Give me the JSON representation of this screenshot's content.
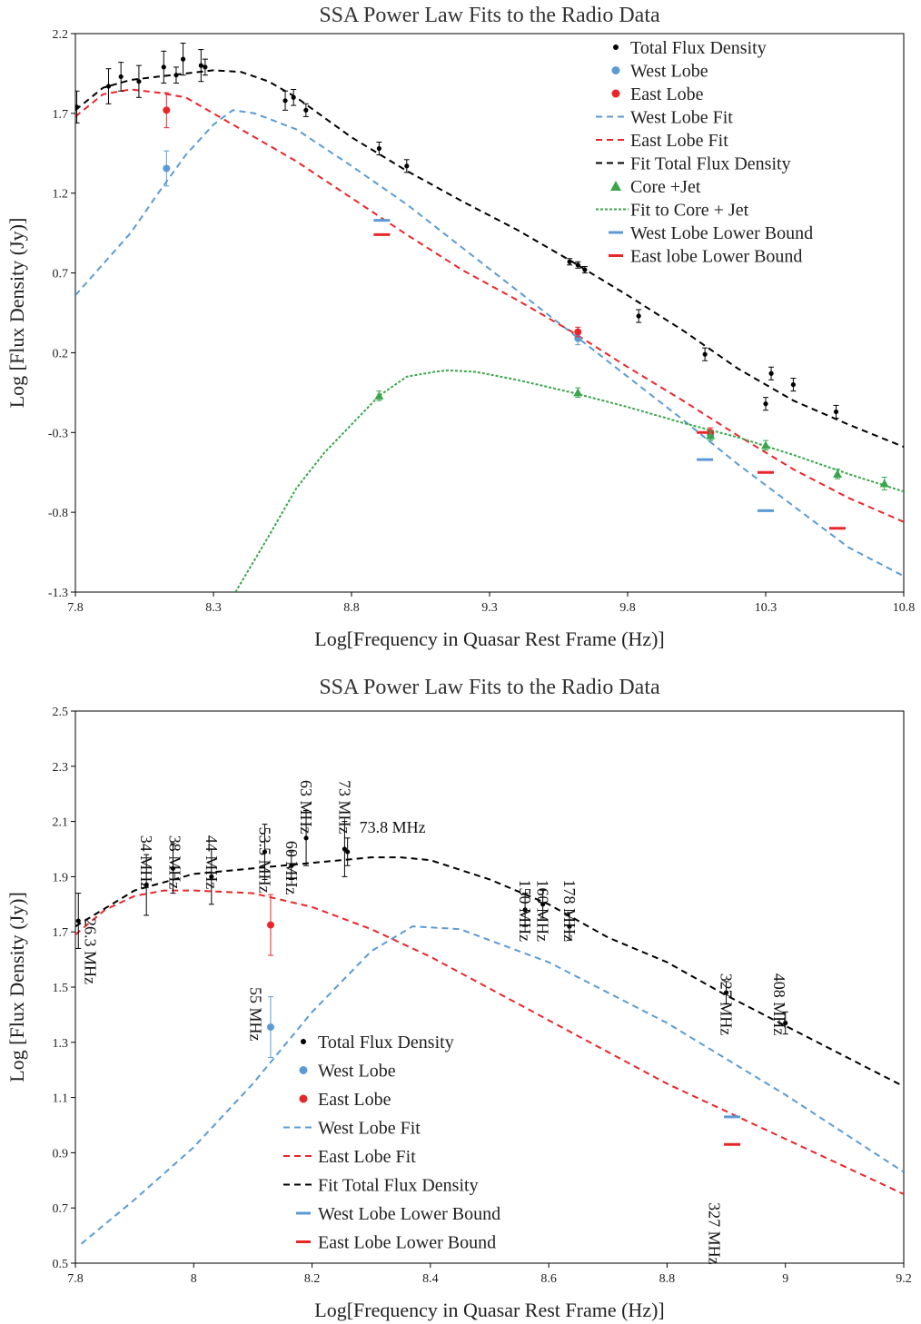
{
  "chart_data": [
    {
      "type": "scatter",
      "title": "SSA Power Law Fits to the Radio Data",
      "xlabel": "Log[Frequency in Quasar Rest Frame (Hz)]",
      "ylabel": "Log [Flux Density (Jy)]",
      "xlim": [
        7.8,
        10.8
      ],
      "ylim": [
        -1.3,
        2.2
      ],
      "xticks": [
        7.8,
        8.3,
        8.8,
        9.3,
        9.8,
        10.3,
        10.8
      ],
      "xtick_labels": [
        "7.8",
        "8.3",
        "8.8",
        "9.3",
        "9.8",
        "10.3",
        "10.8"
      ],
      "yticks": [
        -1.3,
        -0.8,
        -0.3,
        0.2,
        0.7,
        1.2,
        1.7,
        2.2
      ],
      "ytick_labels": [
        "-1.3",
        "-0.8",
        "-0.3",
        "0.2",
        "0.7",
        "1.2",
        "1.7",
        "2.2"
      ],
      "legend_position": "top-right",
      "series": [
        {
          "name": "Total Flux Density",
          "kind": "points",
          "marker": "circle",
          "color": "#000000",
          "points": [
            [
              7.805,
              1.74,
              0.1
            ],
            [
              7.92,
              1.87,
              0.11
            ],
            [
              7.965,
              1.93,
              0.09
            ],
            [
              8.03,
              1.9,
              0.1
            ],
            [
              8.12,
              1.99,
              0.1
            ],
            [
              8.165,
              1.94,
              0.05
            ],
            [
              8.19,
              2.04,
              0.1
            ],
            [
              8.255,
              2.0,
              0.1
            ],
            [
              8.27,
              1.99,
              0.05
            ],
            [
              8.56,
              1.78,
              0.06
            ],
            [
              8.59,
              1.8,
              0.05
            ],
            [
              8.635,
              1.72,
              0.04
            ],
            [
              8.9,
              1.48,
              0.04
            ],
            [
              9.0,
              1.37,
              0.04
            ],
            [
              9.59,
              0.77,
              0.02
            ],
            [
              9.62,
              0.75,
              0.02
            ],
            [
              9.645,
              0.72,
              0.02
            ],
            [
              9.84,
              0.43,
              0.04
            ],
            [
              10.08,
              0.19,
              0.04
            ],
            [
              10.3,
              -0.12,
              0.04
            ],
            [
              10.32,
              0.07,
              0.04
            ],
            [
              10.4,
              0.0,
              0.04
            ],
            [
              10.555,
              -0.17,
              0.04
            ]
          ]
        },
        {
          "name": "West Lobe",
          "kind": "points",
          "marker": "circle",
          "color": "#5b9bd5",
          "points": [
            [
              8.13,
              1.355,
              0.11
            ],
            [
              9.62,
              0.29,
              0.04
            ],
            [
              10.1,
              -0.32,
              0.03
            ]
          ]
        },
        {
          "name": "East Lobe",
          "kind": "points",
          "marker": "circle",
          "color": "#e8262a",
          "points": [
            [
              8.13,
              1.72,
              0.11
            ],
            [
              9.62,
              0.33,
              0.03
            ],
            [
              10.1,
              -0.3,
              0.03
            ]
          ]
        },
        {
          "name": "West Lobe Fit",
          "kind": "line",
          "dash": "dashed",
          "color": "#5b9bd5",
          "points": [
            [
              7.8,
              0.56
            ],
            [
              8.0,
              0.95
            ],
            [
              8.1,
              1.2
            ],
            [
              8.2,
              1.44
            ],
            [
              8.3,
              1.63
            ],
            [
              8.37,
              1.72
            ],
            [
              8.45,
              1.7
            ],
            [
              8.6,
              1.6
            ],
            [
              8.8,
              1.37
            ],
            [
              9.0,
              1.13
            ],
            [
              9.2,
              0.86
            ],
            [
              9.4,
              0.59
            ],
            [
              9.6,
              0.32
            ],
            [
              9.8,
              0.05
            ],
            [
              10.0,
              -0.22
            ],
            [
              10.2,
              -0.5
            ],
            [
              10.4,
              -0.76
            ],
            [
              10.6,
              -1.02
            ],
            [
              10.8,
              -1.2
            ]
          ]
        },
        {
          "name": "East Lobe Fit",
          "kind": "line",
          "dash": "dashed",
          "color": "#e8262a",
          "points": [
            [
              7.8,
              1.68
            ],
            [
              7.9,
              1.82
            ],
            [
              8.0,
              1.85
            ],
            [
              8.1,
              1.83
            ],
            [
              8.2,
              1.8
            ],
            [
              8.3,
              1.7
            ],
            [
              8.4,
              1.6
            ],
            [
              8.6,
              1.4
            ],
            [
              8.8,
              1.17
            ],
            [
              9.0,
              0.94
            ],
            [
              9.2,
              0.72
            ],
            [
              9.4,
              0.53
            ],
            [
              9.6,
              0.33
            ],
            [
              9.8,
              0.11
            ],
            [
              10.0,
              -0.1
            ],
            [
              10.2,
              -0.32
            ],
            [
              10.4,
              -0.53
            ],
            [
              10.6,
              -0.71
            ],
            [
              10.8,
              -0.86
            ]
          ]
        },
        {
          "name": "Fit Total Flux Density",
          "kind": "line",
          "dash": "dashed",
          "color": "#000000",
          "points": [
            [
              7.8,
              1.72
            ],
            [
              7.9,
              1.86
            ],
            [
              8.0,
              1.91
            ],
            [
              8.1,
              1.93
            ],
            [
              8.2,
              1.95
            ],
            [
              8.3,
              1.97
            ],
            [
              8.4,
              1.96
            ],
            [
              8.5,
              1.9
            ],
            [
              8.6,
              1.8
            ],
            [
              8.8,
              1.55
            ],
            [
              9.0,
              1.34
            ],
            [
              9.2,
              1.15
            ],
            [
              9.4,
              0.97
            ],
            [
              9.6,
              0.77
            ],
            [
              9.8,
              0.56
            ],
            [
              10.0,
              0.34
            ],
            [
              10.2,
              0.1
            ],
            [
              10.4,
              -0.1
            ],
            [
              10.6,
              -0.25
            ],
            [
              10.8,
              -0.39
            ]
          ]
        },
        {
          "name": "Core +Jet",
          "kind": "points",
          "marker": "triangle",
          "color": "#3aa64c",
          "points": [
            [
              8.9,
              -0.07,
              0.03
            ],
            [
              9.62,
              -0.05,
              0.03
            ],
            [
              10.1,
              -0.32,
              0.03
            ],
            [
              10.3,
              -0.38,
              0.03
            ],
            [
              10.56,
              -0.56,
              0.03
            ],
            [
              10.73,
              -0.62,
              0.04
            ]
          ]
        },
        {
          "name": "Fit to Core + Jet",
          "kind": "line",
          "dash": "dotted",
          "color": "#3aa64c",
          "points": [
            [
              8.38,
              -1.3
            ],
            [
              8.5,
              -0.95
            ],
            [
              8.6,
              -0.65
            ],
            [
              8.7,
              -0.43
            ],
            [
              8.8,
              -0.25
            ],
            [
              8.9,
              -0.07
            ],
            [
              9.0,
              0.05
            ],
            [
              9.1,
              0.08
            ],
            [
              9.15,
              0.09
            ],
            [
              9.25,
              0.08
            ],
            [
              9.4,
              0.03
            ],
            [
              9.6,
              -0.05
            ],
            [
              9.8,
              -0.14
            ],
            [
              10.0,
              -0.24
            ],
            [
              10.2,
              -0.33
            ],
            [
              10.4,
              -0.44
            ],
            [
              10.6,
              -0.56
            ],
            [
              10.8,
              -0.67
            ]
          ]
        },
        {
          "name": "West Lobe Lower Bound",
          "kind": "bound",
          "color": "#5b9bd5",
          "points": [
            [
              8.91,
              1.03
            ],
            [
              10.08,
              -0.47
            ],
            [
              10.3,
              -0.79
            ]
          ]
        },
        {
          "name": "East lobe Lower Bound",
          "kind": "bound",
          "color": "#e8262a",
          "points": [
            [
              8.91,
              0.94
            ],
            [
              10.08,
              -0.3
            ],
            [
              10.3,
              -0.55
            ],
            [
              10.56,
              -0.9
            ]
          ]
        }
      ]
    },
    {
      "type": "scatter",
      "title": "SSA Power Law Fits to the Radio Data",
      "xlabel": "Log[Frequency in Quasar Rest Frame (Hz)]",
      "ylabel": "Log [Flux Density (Jy)]",
      "xlim": [
        7.8,
        9.2
      ],
      "ylim": [
        0.5,
        2.5
      ],
      "xticks": [
        7.8,
        8.0,
        8.2,
        8.4,
        8.6,
        8.8,
        9.0,
        9.2
      ],
      "xtick_labels": [
        "7.8",
        "8",
        "8.2",
        "8.4",
        "8.6",
        "8.8",
        "9",
        "9.2"
      ],
      "yticks": [
        0.5,
        0.7,
        0.9,
        1.1,
        1.3,
        1.5,
        1.7,
        1.9,
        2.1,
        2.3,
        2.5
      ],
      "ytick_labels": [
        "0.5",
        "0.7",
        "0.9",
        "1.1",
        "1.3",
        "1.5",
        "1.7",
        "1.9",
        "2.1",
        "2.3",
        "2.5"
      ],
      "legend_position": "bottom-center",
      "series": [
        {
          "name": "Total Flux Density",
          "kind": "points",
          "marker": "circle",
          "color": "#000000",
          "points": [
            [
              7.805,
              1.74,
              0.1
            ],
            [
              7.92,
              1.87,
              0.11
            ],
            [
              7.965,
              1.93,
              0.09
            ],
            [
              8.03,
              1.9,
              0.1
            ],
            [
              8.12,
              1.99,
              0.1
            ],
            [
              8.165,
              1.94,
              0.05
            ],
            [
              8.19,
              2.04,
              0.1
            ],
            [
              8.255,
              2.0,
              0.1
            ],
            [
              8.26,
              1.99,
              0.05
            ],
            [
              8.56,
              1.78,
              0.06
            ],
            [
              8.59,
              1.8,
              0.05
            ],
            [
              8.635,
              1.72,
              0.05
            ],
            [
              8.9,
              1.48,
              0.04
            ],
            [
              9.0,
              1.37,
              0.04
            ]
          ]
        },
        {
          "name": "West Lobe",
          "kind": "points",
          "marker": "circle",
          "color": "#5b9bd5",
          "points": [
            [
              8.13,
              1.355,
              0.11
            ]
          ]
        },
        {
          "name": "East Lobe",
          "kind": "points",
          "marker": "circle",
          "color": "#e8262a",
          "points": [
            [
              8.13,
              1.725,
              0.11
            ]
          ]
        },
        {
          "name": "West Lobe Fit",
          "kind": "line",
          "dash": "dashed",
          "color": "#5b9bd5",
          "points": [
            [
              7.81,
              0.57
            ],
            [
              7.9,
              0.73
            ],
            [
              8.0,
              0.92
            ],
            [
              8.1,
              1.15
            ],
            [
              8.2,
              1.41
            ],
            [
              8.3,
              1.63
            ],
            [
              8.37,
              1.72
            ],
            [
              8.45,
              1.71
            ],
            [
              8.6,
              1.59
            ],
            [
              8.8,
              1.37
            ],
            [
              9.0,
              1.11
            ],
            [
              9.2,
              0.83
            ]
          ]
        },
        {
          "name": "East Lobe Fit",
          "kind": "line",
          "dash": "dashed",
          "color": "#e8262a",
          "points": [
            [
              7.8,
              1.69
            ],
            [
              7.85,
              1.78
            ],
            [
              7.9,
              1.83
            ],
            [
              7.95,
              1.85
            ],
            [
              8.0,
              1.85
            ],
            [
              8.1,
              1.84
            ],
            [
              8.2,
              1.79
            ],
            [
              8.3,
              1.71
            ],
            [
              8.4,
              1.61
            ],
            [
              8.6,
              1.38
            ],
            [
              8.8,
              1.15
            ],
            [
              9.0,
              0.95
            ],
            [
              9.2,
              0.75
            ]
          ]
        },
        {
          "name": "Fit Total Flux Density",
          "kind": "line",
          "dash": "dashed",
          "color": "#000000",
          "points": [
            [
              7.8,
              1.72
            ],
            [
              7.9,
              1.85
            ],
            [
              8.0,
              1.91
            ],
            [
              8.1,
              1.93
            ],
            [
              8.2,
              1.95
            ],
            [
              8.3,
              1.97
            ],
            [
              8.35,
              1.97
            ],
            [
              8.4,
              1.96
            ],
            [
              8.5,
              1.89
            ],
            [
              8.6,
              1.8
            ],
            [
              8.7,
              1.68
            ],
            [
              8.8,
              1.59
            ],
            [
              8.9,
              1.47
            ],
            [
              9.0,
              1.36
            ],
            [
              9.1,
              1.25
            ],
            [
              9.2,
              1.14
            ]
          ]
        },
        {
          "name": "West Lobe Lower Bound",
          "kind": "bound",
          "color": "#5b9bd5",
          "points": [
            [
              8.91,
              1.03
            ]
          ]
        },
        {
          "name": "East Lobe Lower Bound",
          "kind": "bound",
          "color": "#e8262a",
          "points": [
            [
              8.91,
              0.93
            ]
          ]
        }
      ],
      "annotations": [
        {
          "text": "26.3 MHz",
          "x": 7.825,
          "y": 1.75,
          "vertical": true
        },
        {
          "text": "34 MHz",
          "x": 7.92,
          "y": 2.05,
          "vertical": true
        },
        {
          "text": "38 MHz",
          "x": 7.968,
          "y": 2.05,
          "vertical": true
        },
        {
          "text": "44 MHz",
          "x": 8.03,
          "y": 2.05,
          "vertical": true
        },
        {
          "text": "53.5 MHz",
          "x": 8.12,
          "y": 2.08,
          "vertical": true
        },
        {
          "text": "60 MHz",
          "x": 8.165,
          "y": 2.03,
          "vertical": true
        },
        {
          "text": "63 MHz",
          "x": 8.19,
          "y": 2.25,
          "vertical": true
        },
        {
          "text": "73 MHz",
          "x": 8.255,
          "y": 2.25,
          "vertical": true
        },
        {
          "text": "73.8 MHz",
          "x": 8.28,
          "y": 2.06,
          "vertical": false
        },
        {
          "text": "55 MHz",
          "x": 8.105,
          "y": 1.5,
          "vertical": true
        },
        {
          "text": "150 MHz",
          "x": 8.56,
          "y": 1.89,
          "vertical": true
        },
        {
          "text": "160 MHz",
          "x": 8.59,
          "y": 1.89,
          "vertical": true
        },
        {
          "text": "178 MHz",
          "x": 8.635,
          "y": 1.89,
          "vertical": true
        },
        {
          "text": "327 MHz",
          "x": 8.9,
          "y": 1.55,
          "vertical": true
        },
        {
          "text": "408 MHz",
          "x": 8.99,
          "y": 1.55,
          "vertical": true
        },
        {
          "text": "327 MHz",
          "x": 8.88,
          "y": 0.72,
          "vertical": true
        }
      ]
    }
  ]
}
